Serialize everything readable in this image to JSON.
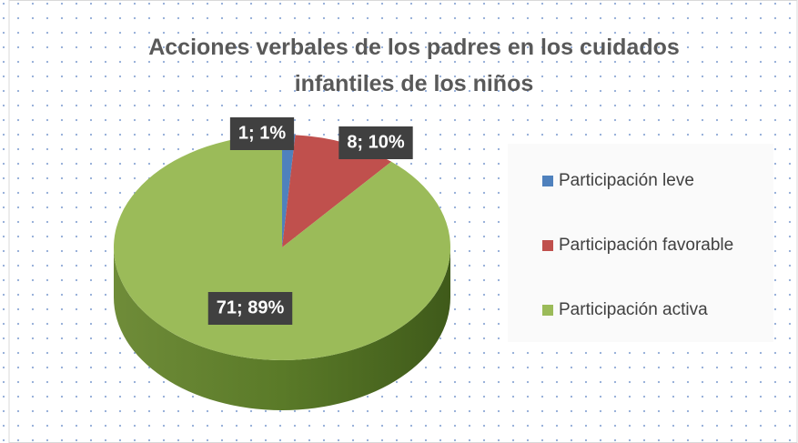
{
  "chart_data": {
    "type": "pie3d",
    "title": "Acciones verbales de los padres en los cuidados infantiles de los niños",
    "categories": [
      "Participación leve",
      "Participación favorable",
      "Participación activa"
    ],
    "values": [
      1,
      8,
      71
    ],
    "value_labels": [
      "1; 1%",
      "8; 10%",
      "71; 89%"
    ],
    "colors": [
      "#4f81bd",
      "#c0504d",
      "#9bbb59"
    ],
    "legend": "right"
  }
}
